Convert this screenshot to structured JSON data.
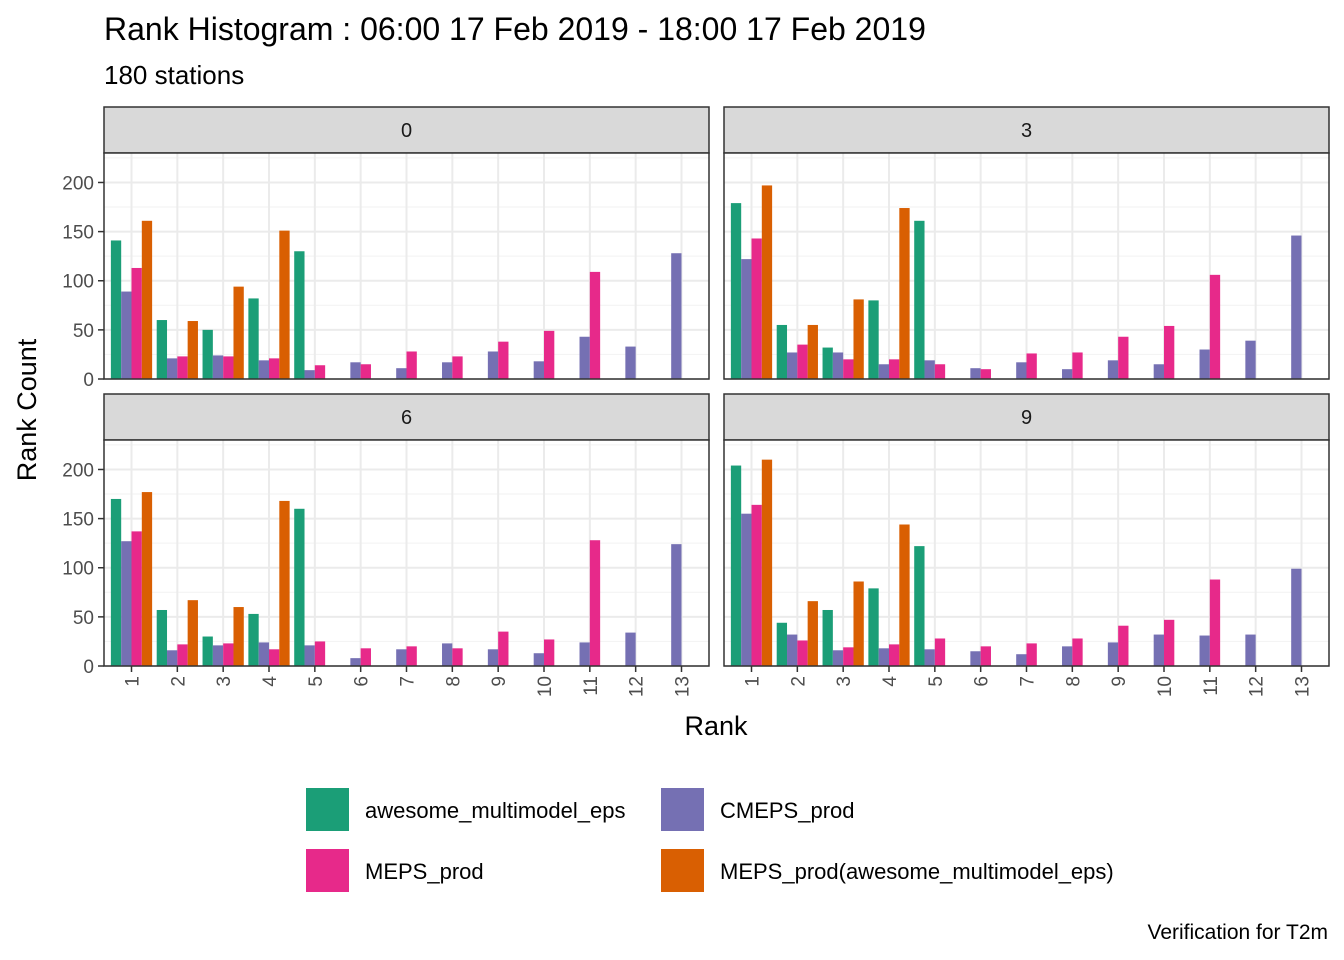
{
  "chart_data": {
    "type": "bar",
    "title": "Rank Histogram : 06:00 17 Feb 2019 - 18:00 17 Feb 2019",
    "subtitle": "180 stations",
    "caption": "Verification for T2m",
    "xlabel": "Rank",
    "ylabel": "Rank Count",
    "ylim": [
      0,
      230
    ],
    "yticks": [
      0,
      50,
      100,
      150,
      200
    ],
    "categories": [
      "1",
      "2",
      "3",
      "4",
      "5",
      "6",
      "7",
      "8",
      "9",
      "10",
      "11",
      "12",
      "13"
    ],
    "grid": true,
    "legend_position": "bottom",
    "series_meta": [
      {
        "name": "awesome_multimodel_eps",
        "color": "#1B9E77"
      },
      {
        "name": "CMEPS_prod",
        "color": "#7570B3"
      },
      {
        "name": "MEPS_prod",
        "color": "#E7298A"
      },
      {
        "name": "MEPS_prod(awesome_multimodel_eps)",
        "color": "#D95F02"
      }
    ],
    "panels": [
      {
        "label": "0",
        "series": [
          {
            "name": "awesome_multimodel_eps",
            "values": [
              141,
              60,
              50,
              82,
              130,
              null,
              null,
              null,
              null,
              null,
              null,
              null,
              null
            ]
          },
          {
            "name": "CMEPS_prod",
            "values": [
              89,
              21,
              24,
              19,
              9,
              17,
              11,
              17,
              28,
              18,
              43,
              33,
              128
            ]
          },
          {
            "name": "MEPS_prod",
            "values": [
              113,
              23,
              23,
              21,
              14,
              15,
              28,
              23,
              38,
              49,
              109,
              null,
              null
            ]
          },
          {
            "name": "MEPS_prod(awesome_multimodel_eps)",
            "values": [
              161,
              59,
              94,
              151,
              null,
              null,
              null,
              null,
              null,
              null,
              null,
              null,
              null
            ]
          }
        ]
      },
      {
        "label": "3",
        "series": [
          {
            "name": "awesome_multimodel_eps",
            "values": [
              179,
              55,
              32,
              80,
              161,
              null,
              null,
              null,
              null,
              null,
              null,
              null,
              null
            ]
          },
          {
            "name": "CMEPS_prod",
            "values": [
              122,
              27,
              27,
              15,
              19,
              11,
              17,
              10,
              19,
              15,
              30,
              39,
              146
            ]
          },
          {
            "name": "MEPS_prod",
            "values": [
              143,
              35,
              20,
              20,
              15,
              10,
              26,
              27,
              43,
              54,
              106,
              null,
              null
            ]
          },
          {
            "name": "MEPS_prod(awesome_multimodel_eps)",
            "values": [
              197,
              55,
              81,
              174,
              null,
              null,
              null,
              null,
              null,
              null,
              null,
              null,
              null
            ]
          }
        ]
      },
      {
        "label": "6",
        "series": [
          {
            "name": "awesome_multimodel_eps",
            "values": [
              170,
              57,
              30,
              53,
              160,
              null,
              null,
              null,
              null,
              null,
              null,
              null,
              null
            ]
          },
          {
            "name": "CMEPS_prod",
            "values": [
              127,
              16,
              21,
              24,
              21,
              8,
              17,
              23,
              17,
              13,
              24,
              34,
              124
            ]
          },
          {
            "name": "MEPS_prod",
            "values": [
              137,
              22,
              23,
              17,
              25,
              18,
              20,
              18,
              35,
              27,
              128,
              null,
              null
            ]
          },
          {
            "name": "MEPS_prod(awesome_multimodel_eps)",
            "values": [
              177,
              67,
              60,
              168,
              null,
              null,
              null,
              null,
              null,
              null,
              null,
              null,
              null
            ]
          }
        ]
      },
      {
        "label": "9",
        "series": [
          {
            "name": "awesome_multimodel_eps",
            "values": [
              204,
              44,
              57,
              79,
              122,
              null,
              null,
              null,
              null,
              null,
              null,
              null,
              null
            ]
          },
          {
            "name": "CMEPS_prod",
            "values": [
              155,
              32,
              16,
              18,
              17,
              15,
              12,
              20,
              24,
              32,
              31,
              32,
              99
            ]
          },
          {
            "name": "MEPS_prod",
            "values": [
              164,
              26,
              19,
              22,
              28,
              20,
              23,
              28,
              41,
              47,
              88,
              null,
              null
            ]
          },
          {
            "name": "MEPS_prod(awesome_multimodel_eps)",
            "values": [
              210,
              66,
              86,
              144,
              null,
              null,
              null,
              null,
              null,
              null,
              null,
              null,
              null
            ]
          }
        ]
      }
    ]
  }
}
